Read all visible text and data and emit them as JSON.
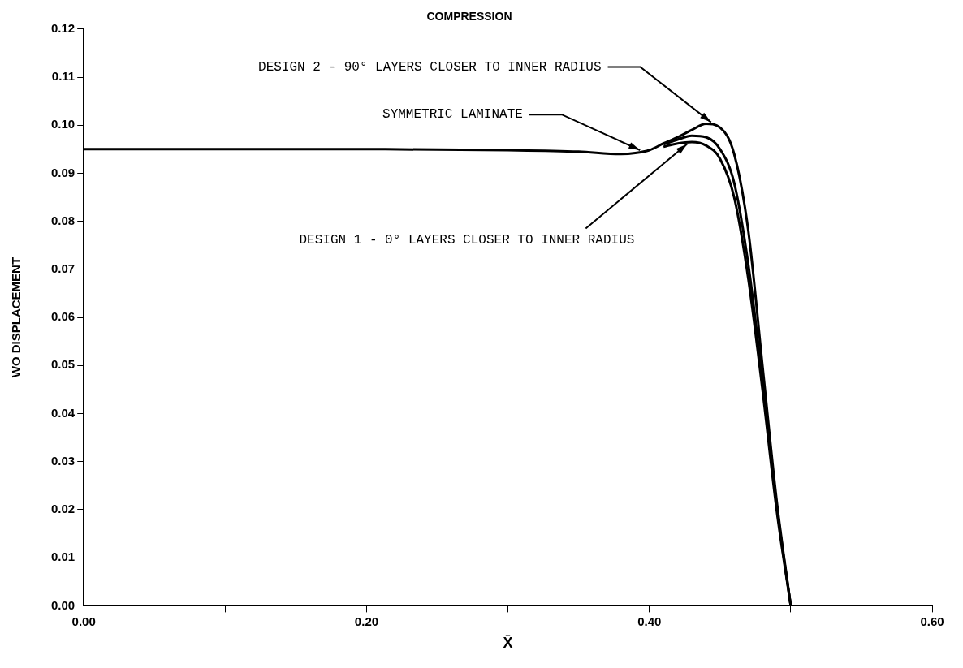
{
  "chart_data": {
    "type": "line",
    "title": "COMPRESSION",
    "xlabel": "X̄",
    "ylabel": "WO DISPLACEMENT",
    "xlim": [
      0,
      0.6
    ],
    "xticks": [
      {
        "value": 0,
        "label": "0.00"
      },
      {
        "value": 0.1,
        "label": null
      },
      {
        "value": 0.2,
        "label": "0.20"
      },
      {
        "value": 0.3,
        "label": null
      },
      {
        "value": 0.4,
        "label": "0.40"
      },
      {
        "value": 0.5,
        "label": null
      },
      {
        "value": 0.6,
        "label": "0.60"
      }
    ],
    "ylim": [
      0,
      0.12
    ],
    "yticks": [
      {
        "value": 0,
        "label": "0.00"
      },
      {
        "value": 0.01,
        "label": "0.01"
      },
      {
        "value": 0.02,
        "label": "0.02"
      },
      {
        "value": 0.03,
        "label": "0.03"
      },
      {
        "value": 0.04,
        "label": "0.04"
      },
      {
        "value": 0.05,
        "label": "0.05"
      },
      {
        "value": 0.06,
        "label": "0.06"
      },
      {
        "value": 0.07,
        "label": "0.07"
      },
      {
        "value": 0.08,
        "label": "0.08"
      },
      {
        "value": 0.09,
        "label": "0.09"
      },
      {
        "value": 0.1,
        "label": "0.10"
      },
      {
        "value": 0.11,
        "label": "0.11"
      },
      {
        "value": 0.12,
        "label": "0.12"
      }
    ],
    "grid": false,
    "legend": false,
    "marker": "none",
    "line_style": "solid",
    "series": [
      {
        "color": "#000000",
        "x": [
          0.41,
          0.42,
          0.43,
          0.44,
          0.45,
          0.46,
          0.47,
          0.48,
          0.49,
          0.5
        ],
        "values": [
          0.0955,
          0.0962,
          0.0965,
          0.0958,
          0.093,
          0.085,
          0.068,
          0.045,
          0.02,
          0
        ]
      },
      {
        "color": "#000000",
        "x": [
          0.41,
          0.42,
          0.43,
          0.44,
          0.45,
          0.46,
          0.47,
          0.48,
          0.49,
          0.5
        ],
        "values": [
          0.096,
          0.097,
          0.0978,
          0.0975,
          0.095,
          0.088,
          0.071,
          0.047,
          0.021,
          0
        ]
      },
      {
        "color": "#000000",
        "x": [
          0,
          0.1,
          0.2,
          0.3,
          0.35,
          0.38,
          0.39,
          0.4,
          0.41,
          0.42,
          0.43,
          0.44,
          0.45,
          0.46,
          0.47,
          0.48,
          0.49,
          0.5
        ],
        "values": [
          0.095,
          0.095,
          0.095,
          0.0948,
          0.0945,
          0.094,
          0.0942,
          0.0948,
          0.0962,
          0.0975,
          0.099,
          0.1003,
          0.0995,
          0.094,
          0.078,
          0.05,
          0.022,
          0
        ]
      }
    ],
    "annotations": [
      {
        "text": "DESIGN 2 - 90° LAYERS CLOSER TO INNER RADIUS",
        "x": 0.445,
        "y": 0.1003
      },
      {
        "text": "SYMMETRIC LAMINATE",
        "x": 0.395,
        "y": 0.0946
      },
      {
        "text": "DESIGN 1 - 0° LAYERS CLOSER TO INNER RADIUS",
        "x": 0.428,
        "y": 0.0964
      }
    ]
  }
}
